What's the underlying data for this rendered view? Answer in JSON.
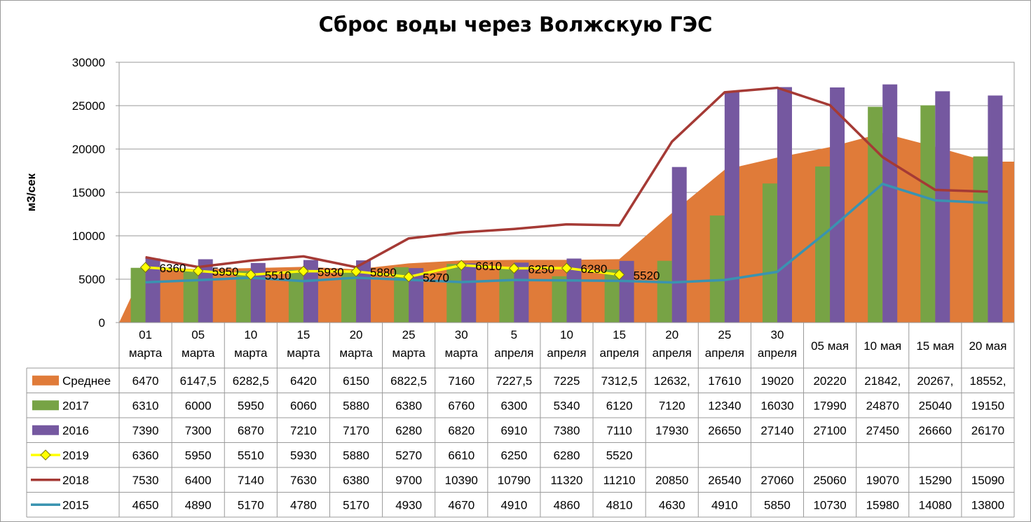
{
  "chart_data": {
    "type": "bar",
    "title": "Сброс воды через Волжскую ГЭС",
    "ylabel": "м3/сек",
    "ylim": [
      0,
      30000
    ],
    "yticks": [
      "0",
      "5000",
      "10000",
      "15000",
      "20000",
      "25000",
      "30000"
    ],
    "categories": [
      [
        "01",
        "марта"
      ],
      [
        "05",
        "марта"
      ],
      [
        "10",
        "марта"
      ],
      [
        "15",
        "марта"
      ],
      [
        "20",
        "марта"
      ],
      [
        "25",
        "марта"
      ],
      [
        "30",
        "марта"
      ],
      [
        "5",
        "апреля"
      ],
      [
        "10",
        "апреля"
      ],
      [
        "15",
        "апреля"
      ],
      [
        "20",
        "апреля"
      ],
      [
        "25",
        "апреля"
      ],
      [
        "30",
        "апреля"
      ],
      [
        "05 мая"
      ],
      [
        "10 мая"
      ],
      [
        "15 мая"
      ],
      [
        "20 мая"
      ]
    ],
    "series": [
      {
        "name": "Среднее",
        "kind": "area",
        "color": "#E07B39",
        "values": [
          6470,
          6147.5,
          6282.5,
          6420,
          6150,
          6822.5,
          7160,
          7227.5,
          7225,
          7312.5,
          12632,
          17610,
          19020,
          20220,
          21842,
          20267,
          18552
        ],
        "labels": [
          "6470",
          "6147,5",
          "6282,5",
          "6420",
          "6150",
          "6822,5",
          "7160",
          "7227,5",
          "7225",
          "7312,5",
          "12632,",
          "17610",
          "19020",
          "20220",
          "21842,",
          "20267,",
          "18552,"
        ]
      },
      {
        "name": "2017",
        "kind": "bar",
        "color": "#77A345",
        "values": [
          6310,
          6000,
          5950,
          6060,
          5880,
          6380,
          6760,
          6300,
          5340,
          6120,
          7120,
          12340,
          16030,
          17990,
          24870,
          25040,
          19150
        ]
      },
      {
        "name": "2016",
        "kind": "bar",
        "color": "#7558A0",
        "values": [
          7390,
          7300,
          6870,
          7210,
          7170,
          6280,
          6820,
          6910,
          7380,
          7110,
          17930,
          26650,
          27140,
          27100,
          27450,
          26660,
          26170
        ]
      },
      {
        "name": "2019",
        "kind": "line-marker",
        "color": "#FFFF00",
        "values": [
          6360,
          5950,
          5510,
          5930,
          5880,
          5270,
          6610,
          6250,
          6280,
          5520,
          null,
          null,
          null,
          null,
          null,
          null,
          null
        ]
      },
      {
        "name": "2018",
        "kind": "line",
        "color": "#A53A35",
        "values": [
          7530,
          6400,
          7140,
          7630,
          6380,
          9700,
          10390,
          10790,
          11320,
          11210,
          20850,
          26540,
          27060,
          25060,
          19070,
          15290,
          15090
        ]
      },
      {
        "name": "2015",
        "kind": "line",
        "color": "#3A93B0",
        "values": [
          4650,
          4890,
          5170,
          4780,
          5170,
          4930,
          4670,
          4910,
          4860,
          4810,
          4630,
          4910,
          5850,
          10730,
          15980,
          14080,
          13800
        ]
      }
    ]
  }
}
